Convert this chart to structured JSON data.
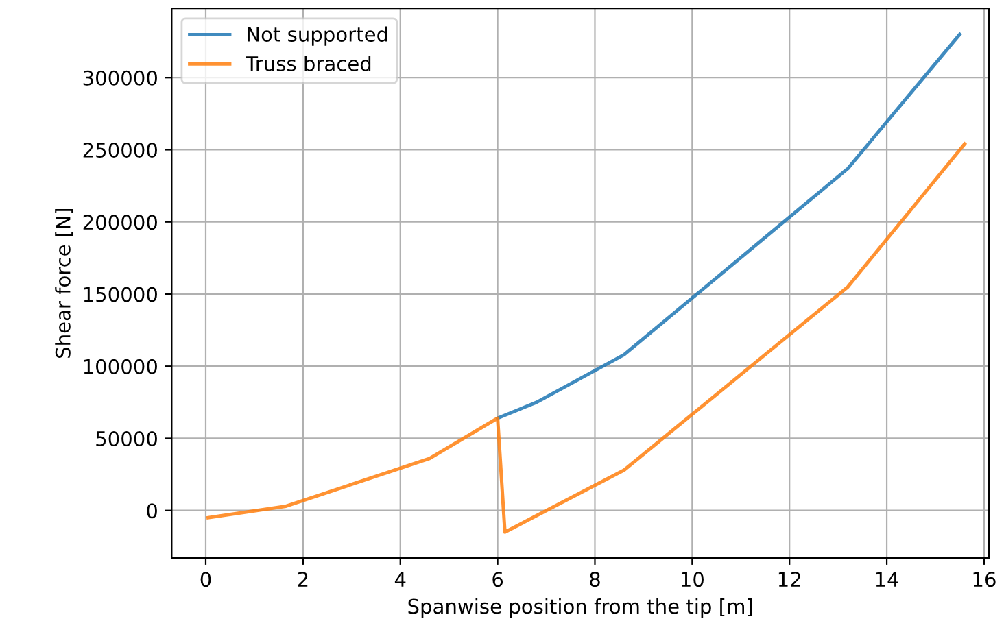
{
  "chart_data": {
    "type": "line",
    "xlabel": "Spanwise position from the tip [m]",
    "ylabel": "Shear force [N]",
    "xlim": [
      -0.7,
      16.1
    ],
    "xticks": [
      0,
      2,
      4,
      6,
      8,
      10,
      12,
      14,
      16
    ],
    "ylim": [
      -33000,
      348000
    ],
    "yticks": [
      0,
      50000,
      100000,
      150000,
      200000,
      250000,
      300000
    ],
    "grid": true,
    "legend": "top left",
    "series": [
      {
        "name": "Not supported",
        "color": "#1f77b4",
        "x": [
          6.0,
          6.8,
          8.6,
          13.2,
          15.5
        ],
        "values": [
          64000,
          75000,
          108000,
          237000,
          330000
        ]
      },
      {
        "name": "Truss braced",
        "color": "#ff7f0e",
        "x": [
          0.05,
          1.65,
          4.6,
          6.0,
          6.15,
          8.6,
          13.2,
          15.6
        ],
        "values": [
          -5000,
          3000,
          36000,
          64000,
          -15000,
          28000,
          155000,
          254000
        ]
      }
    ]
  }
}
